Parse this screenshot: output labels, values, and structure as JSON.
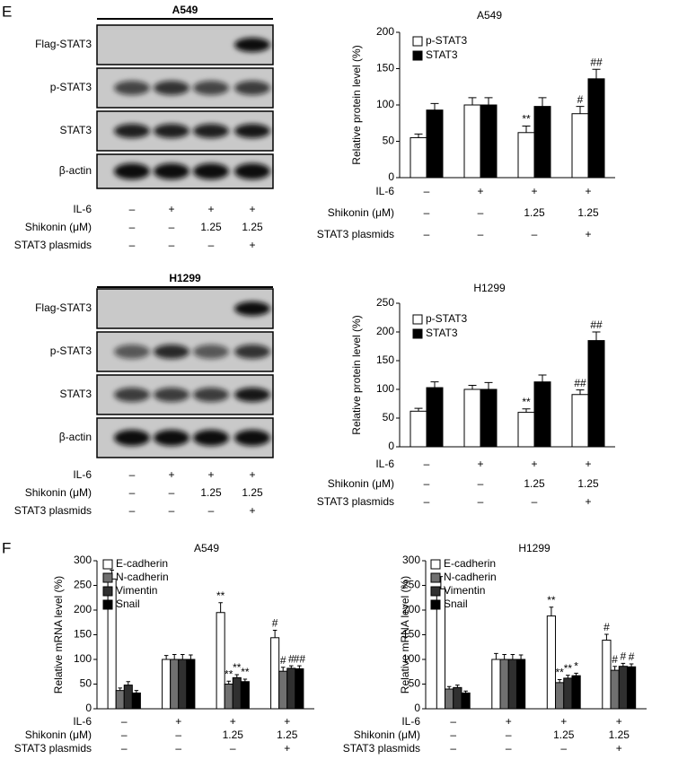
{
  "panel_labels": [
    "E",
    "F"
  ],
  "blots": [
    {
      "title": "A549",
      "rows": [
        "Flag-STAT3",
        "p-STAT3",
        "STAT3",
        "β-actin"
      ],
      "conditions": [
        {
          "label": "IL-6",
          "values": [
            "–",
            "+",
            "+",
            "+"
          ]
        },
        {
          "label": "Shikonin (μM)",
          "values": [
            "–",
            "–",
            "1.25",
            "1.25"
          ]
        },
        {
          "label": "STAT3 plasmids",
          "values": [
            "–",
            "–",
            "–",
            "+"
          ]
        }
      ]
    },
    {
      "title": "H1299",
      "rows": [
        "Flag-STAT3",
        "p-STAT3",
        "STAT3",
        "β-actin"
      ],
      "conditions": [
        {
          "label": "IL-6",
          "values": [
            "–",
            "+",
            "+",
            "+"
          ]
        },
        {
          "label": "Shikonin (μM)",
          "values": [
            "–",
            "–",
            "1.25",
            "1.25"
          ]
        },
        {
          "label": "STAT3 plasmids",
          "values": [
            "–",
            "–",
            "–",
            "+"
          ]
        }
      ]
    }
  ],
  "chart_data": [
    {
      "type": "bar",
      "title": "A549",
      "y_label": "Relative protein level (%)",
      "ylim": [
        0,
        200
      ],
      "yticks": [
        0,
        50,
        100,
        150,
        200
      ],
      "series": [
        {
          "name": "p-STAT3",
          "color": "#ffffff",
          "values": [
            55,
            100,
            62,
            88
          ],
          "errors": [
            5,
            10,
            9,
            10
          ],
          "annotations": [
            null,
            null,
            "**",
            "#"
          ]
        },
        {
          "name": "STAT3",
          "color": "#000000",
          "values": [
            93,
            100,
            98,
            136
          ],
          "errors": [
            9,
            10,
            12,
            13
          ],
          "annotations": [
            null,
            null,
            null,
            "##"
          ]
        }
      ],
      "conditions": [
        {
          "label": "IL-6",
          "values": [
            "–",
            "+",
            "+",
            "+"
          ]
        },
        {
          "label": "Shikonin (μM)",
          "values": [
            "–",
            "–",
            "1.25",
            "1.25"
          ]
        },
        {
          "label": "STAT3 plasmids",
          "values": [
            "–",
            "–",
            "–",
            "+"
          ]
        }
      ]
    },
    {
      "type": "bar",
      "title": "H1299",
      "y_label": "Relative protein level (%)",
      "ylim": [
        0,
        250
      ],
      "yticks": [
        0,
        50,
        100,
        150,
        200,
        250
      ],
      "series": [
        {
          "name": "p-STAT3",
          "color": "#ffffff",
          "values": [
            62,
            100,
            60,
            91
          ],
          "errors": [
            5,
            7,
            6,
            8
          ],
          "annotations": [
            null,
            null,
            "**",
            "##"
          ]
        },
        {
          "name": "STAT3",
          "color": "#000000",
          "values": [
            103,
            100,
            113,
            185
          ],
          "errors": [
            10,
            12,
            12,
            15
          ],
          "annotations": [
            null,
            null,
            null,
            "##"
          ]
        }
      ],
      "conditions": [
        {
          "label": "IL-6",
          "values": [
            "–",
            "+",
            "+",
            "+"
          ]
        },
        {
          "label": "Shikonin (μM)",
          "values": [
            "–",
            "–",
            "1.25",
            "1.25"
          ]
        },
        {
          "label": "STAT3 plasmids",
          "values": [
            "–",
            "–",
            "–",
            "+"
          ]
        }
      ]
    },
    {
      "type": "bar",
      "title": "A549",
      "y_label": "Relative mRNA level (%)",
      "ylim": [
        0,
        300
      ],
      "yticks": [
        0,
        50,
        100,
        150,
        200,
        250,
        300
      ],
      "series": [
        {
          "name": "E-cadherin",
          "color": "#ffffff",
          "values": [
            263,
            100,
            195,
            144
          ],
          "errors": [
            18,
            8,
            20,
            15
          ],
          "annotations": [
            null,
            null,
            "**",
            "#"
          ]
        },
        {
          "name": "N-cadherin",
          "color": "#707070",
          "values": [
            37,
            100,
            50,
            76
          ],
          "errors": [
            5,
            10,
            6,
            8
          ],
          "annotations": [
            null,
            null,
            "**",
            "#"
          ]
        },
        {
          "name": "Vimentin",
          "color": "#303030",
          "values": [
            48,
            100,
            63,
            82
          ],
          "errors": [
            7,
            10,
            6,
            5
          ],
          "annotations": [
            null,
            null,
            "**",
            "#"
          ]
        },
        {
          "name": "Snail",
          "color": "#000000",
          "values": [
            32,
            100,
            55,
            81
          ],
          "errors": [
            5,
            9,
            5,
            6
          ],
          "annotations": [
            null,
            null,
            "**",
            "##"
          ]
        }
      ],
      "conditions": [
        {
          "label": "IL-6",
          "values": [
            "–",
            "+",
            "+",
            "+"
          ]
        },
        {
          "label": "Shikonin (μM)",
          "values": [
            "–",
            "–",
            "1.25",
            "1.25"
          ]
        },
        {
          "label": "STAT3 plasmids",
          "values": [
            "–",
            "–",
            "–",
            "+"
          ]
        }
      ]
    },
    {
      "type": "bar",
      "title": "H1299",
      "y_label": "Relative mRNA level (%)",
      "ylim": [
        0,
        300
      ],
      "yticks": [
        0,
        50,
        100,
        150,
        200,
        250,
        300
      ],
      "series": [
        {
          "name": "E-cadherin",
          "color": "#ffffff",
          "values": [
            243,
            100,
            188,
            139
          ],
          "errors": [
            25,
            12,
            18,
            12
          ],
          "annotations": [
            null,
            null,
            "**",
            "#"
          ]
        },
        {
          "name": "N-cadherin",
          "color": "#707070",
          "values": [
            40,
            100,
            53,
            78
          ],
          "errors": [
            5,
            10,
            6,
            8
          ],
          "annotations": [
            null,
            null,
            "**",
            "#"
          ]
        },
        {
          "name": "Vimentin",
          "color": "#303030",
          "values": [
            43,
            100,
            62,
            86
          ],
          "errors": [
            5,
            10,
            6,
            6
          ],
          "annotations": [
            null,
            null,
            "**",
            "#"
          ]
        },
        {
          "name": "Snail",
          "color": "#000000",
          "values": [
            32,
            100,
            67,
            85
          ],
          "errors": [
            4,
            9,
            5,
            6
          ],
          "annotations": [
            null,
            null,
            "*",
            "#"
          ]
        }
      ],
      "conditions": [
        {
          "label": "IL-6",
          "values": [
            "–",
            "+",
            "+",
            "+"
          ]
        },
        {
          "label": "Shikonin (μM)",
          "values": [
            "–",
            "–",
            "1.25",
            "1.25"
          ]
        },
        {
          "label": "STAT3 plasmids",
          "values": [
            "–",
            "–",
            "–",
            "+"
          ]
        }
      ]
    }
  ]
}
